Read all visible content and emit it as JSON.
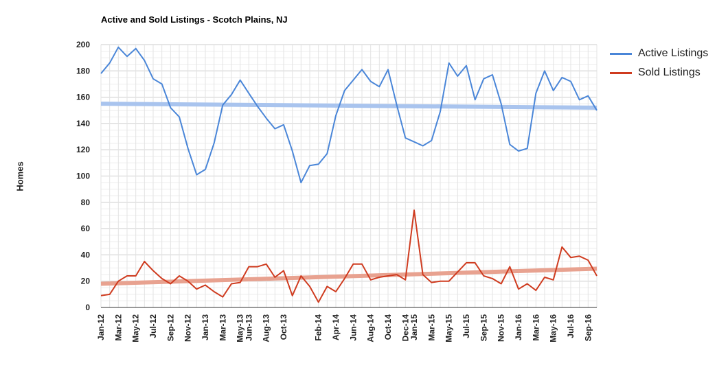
{
  "chart_data": {
    "type": "line",
    "title": "Active and Sold Listings - Scotch Plains, NJ",
    "xlabel": "",
    "ylabel": "Homes",
    "ylim": [
      0,
      200
    ],
    "yticks": [
      0,
      20,
      40,
      60,
      80,
      100,
      120,
      140,
      160,
      180,
      200
    ],
    "grid": true,
    "legend_position": "right",
    "x_tick_labels": [
      "Jan-12",
      "Mar-12",
      "May-12",
      "Jul-12",
      "Sep-12",
      "Nov-12",
      "Jan-13",
      "Mar-13",
      "May-13",
      "Jun-13",
      "Aug-13",
      "Oct-13",
      "Feb-14",
      "Apr-14",
      "Jun-14",
      "Aug-14",
      "Oct-14",
      "Dec-14",
      "Jan-15",
      "Mar-15",
      "May-15",
      "Jul-15",
      "Sep-15",
      "Nov-15",
      "Jan-16",
      "Mar-16",
      "May-16",
      "Jul-16",
      "Sep-16"
    ],
    "x": [
      "Jan-12",
      "Feb-12",
      "Mar-12",
      "Apr-12",
      "May-12",
      "Jun-12",
      "Jul-12",
      "Aug-12",
      "Sep-12",
      "Oct-12",
      "Nov-12",
      "Dec-12",
      "Jan-13",
      "Feb-13",
      "Mar-13",
      "Apr-13",
      "May-13",
      "Jun-13",
      "Jul-13",
      "Aug-13",
      "Sep-13",
      "Oct-13",
      "Nov-13",
      "Dec-13",
      "Jan-14",
      "Feb-14",
      "Mar-14",
      "Apr-14",
      "May-14",
      "Jun-14",
      "Jul-14",
      "Aug-14",
      "Sep-14",
      "Oct-14",
      "Nov-14",
      "Dec-14",
      "Jan-15",
      "Feb-15",
      "Mar-15",
      "Apr-15",
      "May-15",
      "Jun-15",
      "Jul-15",
      "Aug-15",
      "Sep-15",
      "Oct-15",
      "Nov-15",
      "Dec-15",
      "Jan-16",
      "Feb-16",
      "Mar-16",
      "Apr-16",
      "May-16",
      "Jun-16",
      "Jul-16",
      "Aug-16",
      "Sep-16",
      "Oct-16"
    ],
    "series": [
      {
        "name": "Active Listings",
        "color": "#4a86d8",
        "values": [
          178,
          186,
          198,
          191,
          197,
          188,
          174,
          170,
          152,
          145,
          121,
          101,
          105,
          125,
          154,
          162,
          173,
          163,
          153,
          144,
          136,
          139,
          119,
          95,
          108,
          109,
          117,
          146,
          165,
          173,
          181,
          172,
          168,
          181,
          154,
          129,
          126,
          123,
          127,
          149,
          186,
          176,
          184,
          158,
          174,
          177,
          155,
          124,
          119,
          121,
          163,
          180,
          165,
          175,
          172,
          158,
          161,
          150
        ],
        "trend": [
          155,
          152
        ]
      },
      {
        "name": "Sold Listings",
        "color": "#cf3b1f",
        "values": [
          9,
          10,
          20,
          24,
          24,
          35,
          28,
          22,
          18,
          24,
          20,
          14,
          17,
          12,
          8,
          18,
          19,
          31,
          31,
          33,
          23,
          28,
          9,
          24,
          16,
          4,
          16,
          12,
          22,
          33,
          33,
          21,
          23,
          24,
          25,
          21,
          74,
          25,
          19,
          20,
          20,
          27,
          34,
          34,
          24,
          22,
          18,
          31,
          14,
          18,
          13,
          23,
          21,
          46,
          38,
          39,
          36,
          24
        ],
        "trend": [
          18,
          29.5
        ]
      }
    ],
    "trend_colors": [
      "#a9c4ee",
      "#e8a290"
    ]
  }
}
